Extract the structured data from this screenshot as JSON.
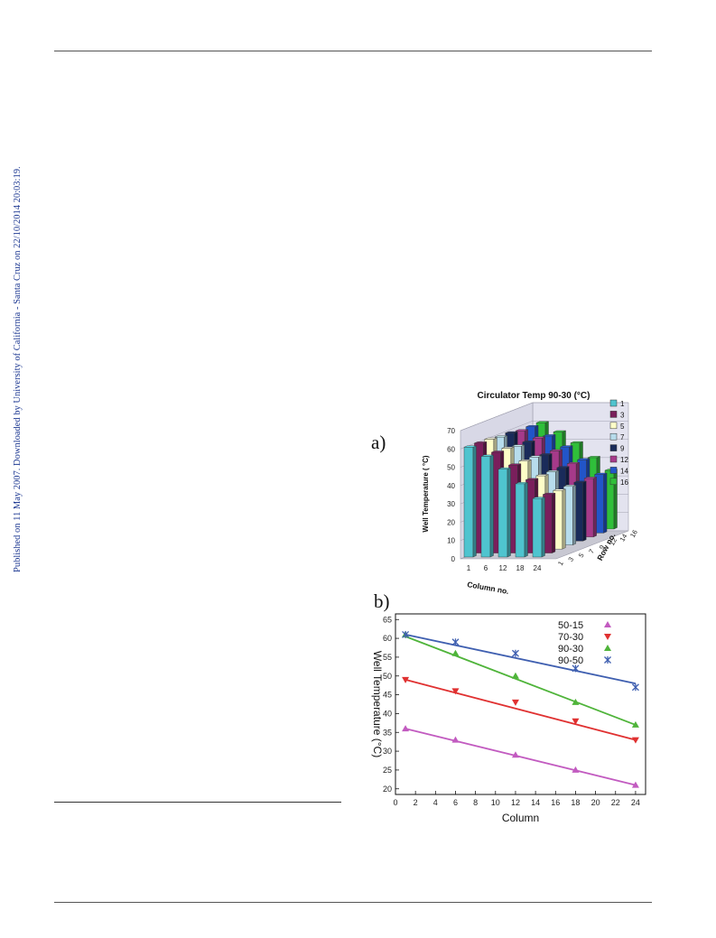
{
  "side_notice": "Published on 11 May 2007. Downloaded by University of California - Santa Cruz on 22/10/2014 20:03:19.",
  "panel_a_letter": "a)",
  "panel_b_letter": "b)",
  "chart_data": [
    {
      "type": "bar",
      "subtype": "3d-bar",
      "title": "Circulator Temp 90-30 (°C)",
      "xlabel": "Column no.",
      "ylabel": "Well Temperature ( °C)",
      "zlabel": "Row no.",
      "categories": [
        "1",
        "6",
        "12",
        "18",
        "24"
      ],
      "y_ticks": [
        "0",
        "10",
        "20",
        "30",
        "40",
        "50",
        "60",
        "70"
      ],
      "ylim": [
        0,
        70
      ],
      "row_ticks": [
        "1",
        "3",
        "5",
        "7",
        "9",
        "12",
        "14",
        "16"
      ],
      "legend_position": "right",
      "grid": true,
      "series": [
        {
          "name": "1",
          "color": "#4fc4cf",
          "values": [
            60,
            55,
            48,
            40,
            32
          ]
        },
        {
          "name": "3",
          "color": "#7a1f5c",
          "values": [
            60,
            55,
            48,
            40,
            32
          ]
        },
        {
          "name": "5",
          "color": "#fdfdc8",
          "values": [
            60,
            55,
            48,
            40,
            32
          ]
        },
        {
          "name": "7",
          "color": "#b7dcec",
          "values": [
            59,
            54,
            48,
            40,
            32
          ]
        },
        {
          "name": "9",
          "color": "#1a2b5a",
          "values": [
            59,
            54,
            47,
            40,
            32
          ]
        },
        {
          "name": "12",
          "color": "#a63a8a",
          "values": [
            58,
            54,
            47,
            40,
            32
          ]
        },
        {
          "name": "14",
          "color": "#2255c8",
          "values": [
            58,
            53,
            47,
            40,
            32
          ]
        },
        {
          "name": "16",
          "color": "#2fbf3a",
          "values": [
            58,
            53,
            47,
            39,
            32
          ]
        }
      ]
    },
    {
      "type": "scatter",
      "xlabel": "Column",
      "ylabel": "Well Temperature (°C)",
      "x_ticks": [
        "0",
        "2",
        "4",
        "6",
        "8",
        "10",
        "12",
        "14",
        "16",
        "18",
        "20",
        "22",
        "24"
      ],
      "y_ticks": [
        "20",
        "25",
        "30",
        "35",
        "40",
        "45",
        "50",
        "55",
        "60",
        "65"
      ],
      "xlim": [
        0,
        25
      ],
      "ylim": [
        18.5,
        66.5
      ],
      "legend_position": "top-right",
      "grid": false,
      "series": [
        {
          "name": "50-15",
          "marker": "triangle-up",
          "color": "#c25bc0",
          "x": [
            1,
            6,
            12,
            18,
            24
          ],
          "y": [
            36,
            33,
            29,
            25,
            21
          ],
          "fit": [
            36,
            21
          ]
        },
        {
          "name": "70-30",
          "marker": "triangle-down",
          "color": "#e03131",
          "x": [
            1,
            6,
            12,
            18,
            24
          ],
          "y": [
            49,
            46,
            43,
            38,
            33
          ],
          "fit": [
            49,
            33
          ]
        },
        {
          "name": "90-30",
          "marker": "triangle-up",
          "color": "#4fb43a",
          "x": [
            1,
            6,
            12,
            18,
            24
          ],
          "y": [
            61,
            56,
            50,
            43,
            37
          ],
          "fit": [
            60.5,
            37
          ]
        },
        {
          "name": "90-50",
          "marker": "star",
          "color": "#3f5fb0",
          "x": [
            1,
            6,
            12,
            18,
            24
          ],
          "y": [
            61,
            59,
            56,
            52,
            47
          ],
          "fit": [
            61,
            48
          ]
        }
      ]
    }
  ]
}
